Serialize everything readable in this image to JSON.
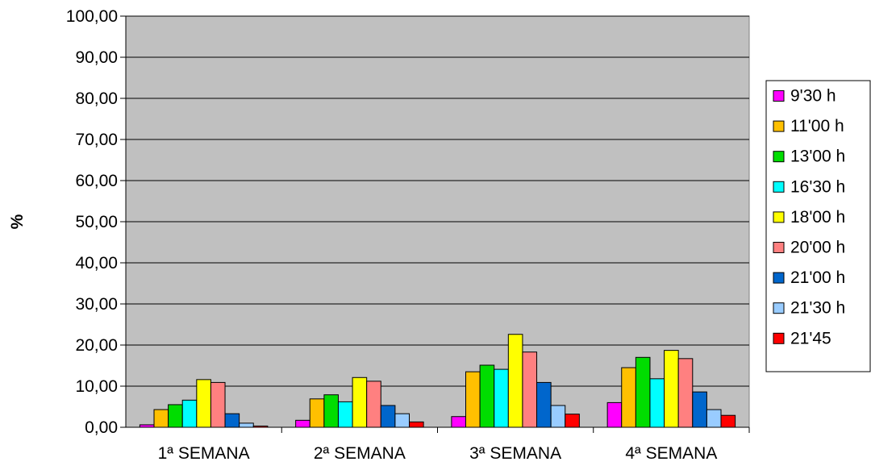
{
  "chart_data": {
    "type": "bar",
    "title": "",
    "xlabel": "",
    "ylabel": "%",
    "ylim": [
      0,
      100
    ],
    "ytick_step": 10,
    "ytick_labels": [
      "0,00",
      "10,00",
      "20,00",
      "30,00",
      "40,00",
      "50,00",
      "60,00",
      "70,00",
      "80,00",
      "90,00",
      "100,00"
    ],
    "grid": true,
    "plot_background": "#c0c0c0",
    "legend_position": "right",
    "categories": [
      "1ª SEMANA",
      "2ª SEMANA",
      "3ª SEMANA",
      "4ª SEMANA"
    ],
    "series": [
      {
        "name": "9'30 h",
        "color": "#ff00ff",
        "values": [
          0.6,
          1.7,
          2.6,
          6.0
        ]
      },
      {
        "name": "11'00 h",
        "color": "#ffc000",
        "values": [
          4.3,
          6.9,
          13.5,
          14.5
        ]
      },
      {
        "name": "13'00 h",
        "color": "#00dd00",
        "values": [
          5.5,
          7.9,
          15.1,
          17.0
        ]
      },
      {
        "name": "16'30 h",
        "color": "#00ffff",
        "values": [
          6.6,
          6.2,
          14.1,
          11.8
        ]
      },
      {
        "name": "18'00 h",
        "color": "#ffff00",
        "values": [
          11.6,
          12.1,
          22.6,
          18.7
        ]
      },
      {
        "name": "20'00 h",
        "color": "#ff8080",
        "values": [
          10.9,
          11.2,
          18.3,
          16.7
        ]
      },
      {
        "name": "21'00 h",
        "color": "#0066cc",
        "values": [
          3.3,
          5.3,
          10.9,
          8.6
        ]
      },
      {
        "name": "21'30 h",
        "color": "#99ccff",
        "values": [
          1.0,
          3.3,
          5.3,
          4.3
        ]
      },
      {
        "name": "21'45",
        "color": "#ff0000",
        "values": [
          0.3,
          1.3,
          3.2,
          2.9
        ]
      }
    ]
  }
}
